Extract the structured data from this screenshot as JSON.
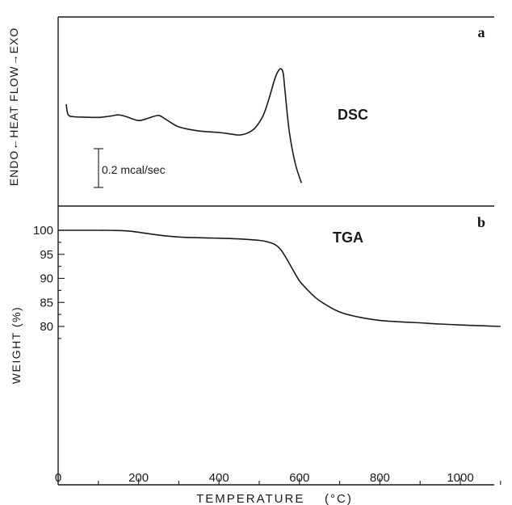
{
  "chart_data": [
    {
      "type": "line",
      "panel_label": "a",
      "name": "DSC",
      "ylabel": "ENDO←HEAT FLOW→EXO",
      "scale_bar_label": "0.2 mcal/sec",
      "x": [
        20,
        25,
        40,
        60,
        100,
        130,
        150,
        170,
        200,
        225,
        250,
        270,
        300,
        350,
        400,
        430,
        450,
        470,
        490,
        510,
        525,
        540,
        550,
        556,
        560,
        565,
        575,
        590,
        605
      ],
      "y": [
        0.9,
        0.56,
        0.5,
        0.49,
        0.48,
        0.52,
        0.56,
        0.5,
        0.38,
        0.46,
        0.54,
        0.4,
        0.18,
        0.05,
        0.0,
        -0.05,
        -0.08,
        -0.02,
        0.15,
        0.55,
        1.1,
        1.75,
        2.0,
        2.0,
        1.85,
        1.2,
        0.0,
        -1.0,
        -1.6
      ]
    },
    {
      "type": "line",
      "panel_label": "b",
      "name": "TGA",
      "xlabel": "TEMPERATURE    (°C)",
      "ylabel": "WEIGHT   (%)",
      "x_ticks": [
        0,
        200,
        400,
        600,
        800,
        1000
      ],
      "y_ticks": [
        80,
        85,
        90,
        95,
        100
      ],
      "x": [
        0,
        100,
        150,
        175,
        200,
        250,
        300,
        350,
        400,
        450,
        500,
        520,
        540,
        555,
        570,
        585,
        600,
        620,
        640,
        660,
        700,
        750,
        800,
        850,
        900,
        950,
        1000,
        1050,
        1100
      ],
      "y": [
        100,
        100,
        99.95,
        99.85,
        99.6,
        99.0,
        98.6,
        98.45,
        98.35,
        98.2,
        97.9,
        97.6,
        97.0,
        95.8,
        93.8,
        91.6,
        89.5,
        87.6,
        86.0,
        84.8,
        83.0,
        81.9,
        81.25,
        80.95,
        80.75,
        80.5,
        80.3,
        80.15,
        80.0
      ]
    }
  ]
}
